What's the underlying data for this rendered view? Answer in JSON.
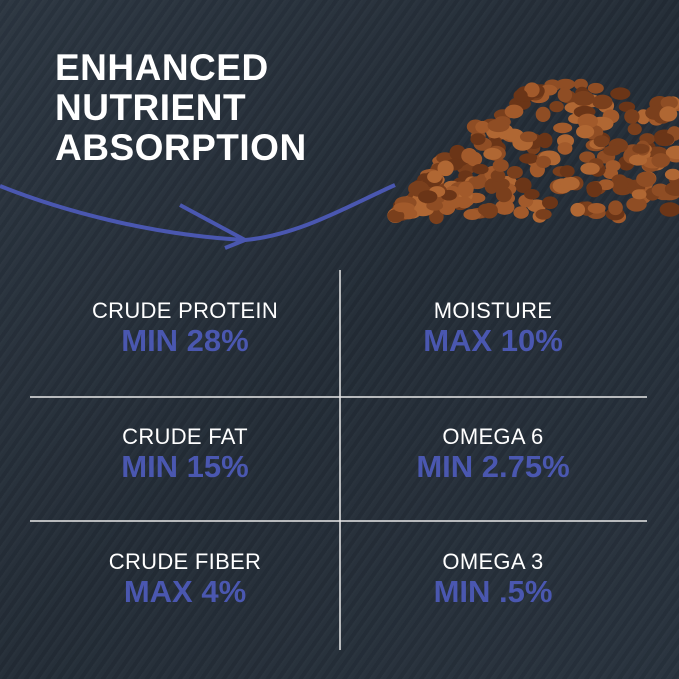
{
  "headline": [
    "ENHANCED",
    "NUTRIENT",
    "ABSORPTION"
  ],
  "colors": {
    "background": "#26303a",
    "accent": "#4a57b0",
    "text": "#ffffff",
    "kibble": "#8a4a22"
  },
  "nutrients": [
    {
      "label": "CRUDE PROTEIN",
      "value": "MIN 28%"
    },
    {
      "label": "MOISTURE",
      "value": "MAX 10%"
    },
    {
      "label": "CRUDE FAT",
      "value": "MIN 15%"
    },
    {
      "label": "OMEGA 6",
      "value": "MIN 2.75%"
    },
    {
      "label": "CRUDE FIBER",
      "value": "MAX 4%"
    },
    {
      "label": "OMEGA 3",
      "value": "MIN .5%"
    }
  ]
}
